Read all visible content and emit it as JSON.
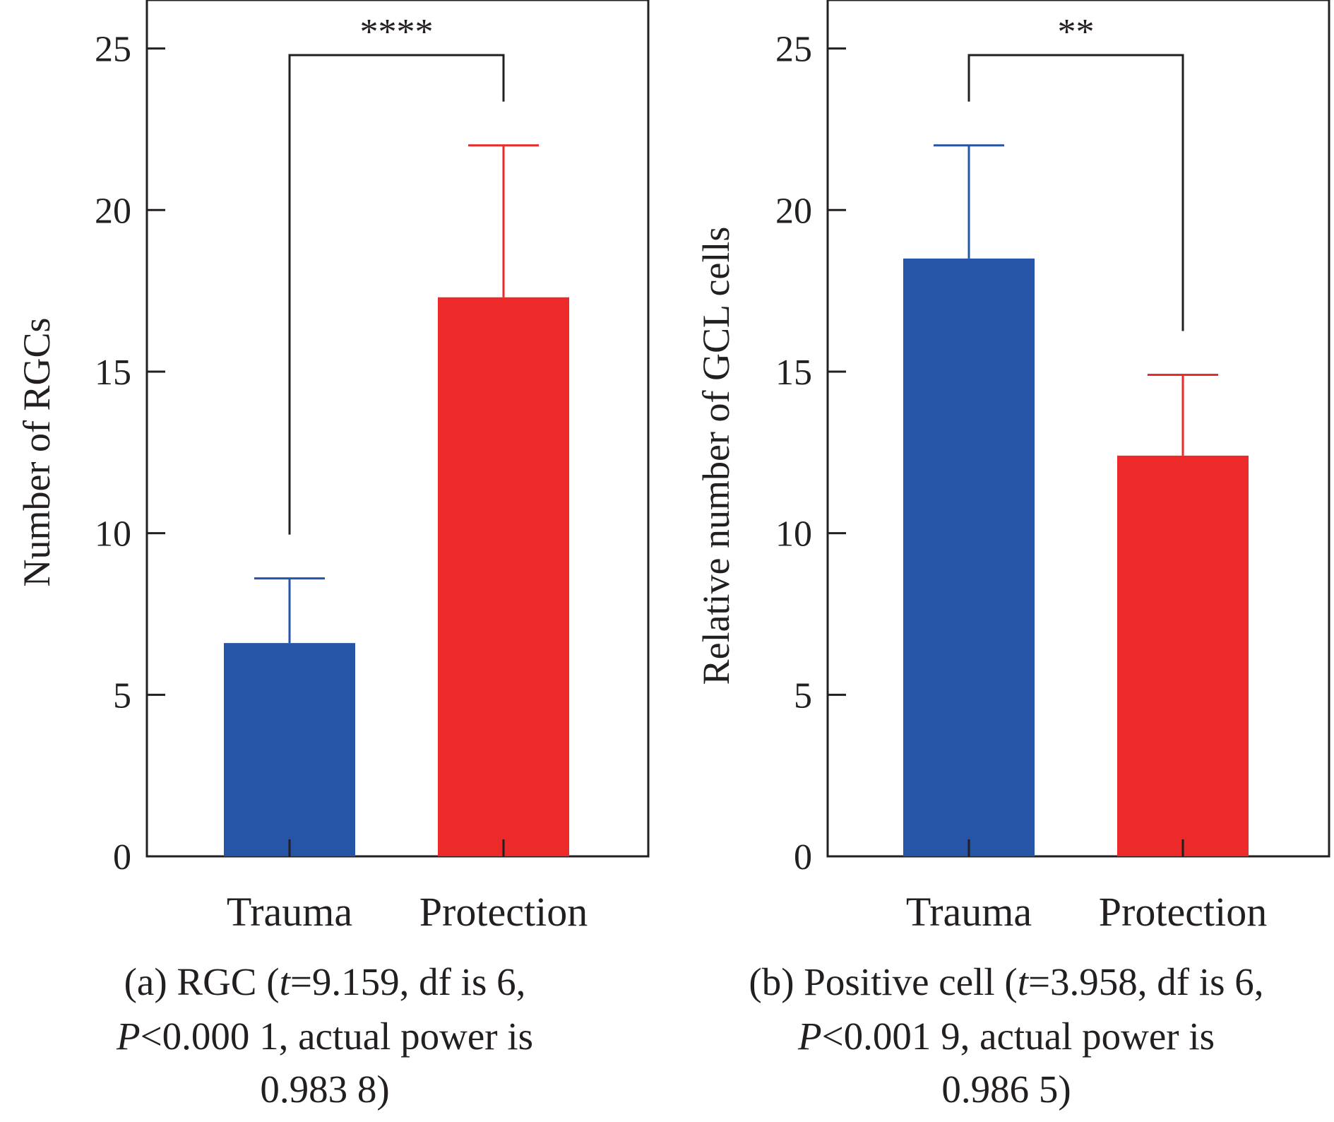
{
  "colors": {
    "trauma": "#2654a6",
    "protection": "#ed2a2a",
    "axis": "#231f20"
  },
  "chart_data": [
    {
      "type": "bar",
      "categories": [
        "Trauma",
        "Protection"
      ],
      "values": [
        6.6,
        17.3
      ],
      "error_upper": [
        8.6,
        22.0
      ],
      "ylabel": "Number of RGCs",
      "xlabel": "",
      "ylim": [
        0,
        26.5
      ],
      "yticks": [
        "0",
        "5",
        "10",
        "15",
        "20",
        "25"
      ],
      "significance": "****",
      "grid": false,
      "caption": {
        "line1_a": "(a) RGC (",
        "line1_t": "t",
        "line1_b": "=9.159, df is 6,",
        "line2_p": "P",
        "line2_b": "<0.000 1, actual power is",
        "line3": "0.983 8)"
      }
    },
    {
      "type": "bar",
      "categories": [
        "Trauma",
        "Protection"
      ],
      "values": [
        18.5,
        12.4
      ],
      "error_upper": [
        22.0,
        14.9
      ],
      "ylabel": "Relative number of GCL cells",
      "xlabel": "",
      "ylim": [
        0,
        26.5
      ],
      "yticks": [
        "0",
        "5",
        "10",
        "15",
        "20",
        "25"
      ],
      "significance": "**",
      "grid": false,
      "caption": {
        "line1_a": "(b) Positive cell (",
        "line1_t": "t",
        "line1_b": "=3.958, df is 6,",
        "line2_p": "P",
        "line2_b": "<0.001 9, actual power is",
        "line3": "0.986 5)"
      }
    }
  ]
}
